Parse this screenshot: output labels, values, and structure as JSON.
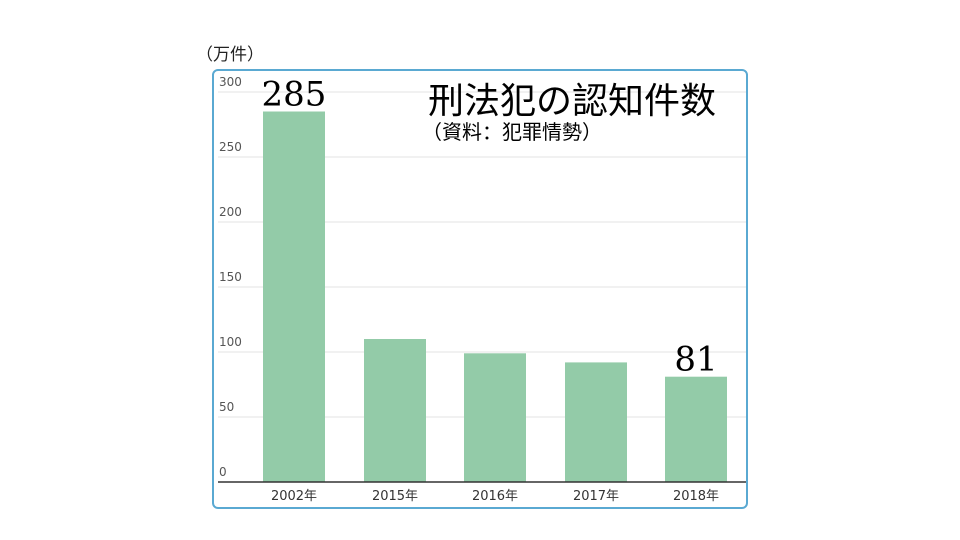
{
  "chart_data": {
    "type": "bar",
    "title": "刑法犯の認知件数",
    "subtitle": "（資料：犯罪情勢）",
    "unit_label": "（万件）",
    "categories": [
      "2002年",
      "2015年",
      "2016年",
      "2017年",
      "2018年"
    ],
    "values": [
      285,
      110,
      99,
      92,
      81
    ],
    "data_labels": [
      "285",
      "",
      "",
      "",
      "81"
    ],
    "ylim": [
      0,
      300
    ],
    "yticks": [
      "0",
      "50",
      "100",
      "150",
      "200",
      "250",
      "300"
    ],
    "grid": true,
    "bar_color": "#93cba8",
    "frame_color": "#5aa9d2"
  }
}
